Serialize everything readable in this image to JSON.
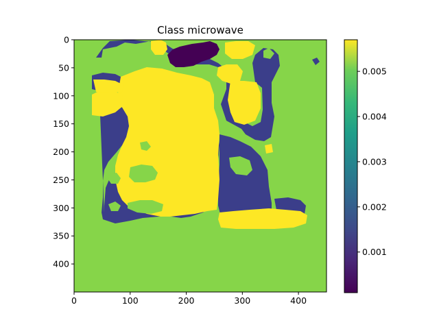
{
  "chart_data": {
    "type": "heatmap",
    "title": "Class microwave",
    "xlabel": "",
    "ylabel": "",
    "x_ticks": [
      "0",
      "100",
      "200",
      "300",
      "400"
    ],
    "y_ticks": [
      "0",
      "50",
      "100",
      "150",
      "200",
      "250",
      "300",
      "350",
      "400"
    ],
    "xlim": [
      0,
      450
    ],
    "ylim": [
      450,
      0
    ],
    "colorbar": {
      "range": [
        0.0001,
        0.0057
      ],
      "ticks": [
        "0.001",
        "0.002",
        "0.003",
        "0.004",
        "0.005"
      ],
      "colormap": "viridis"
    },
    "values_legend": {
      "background": 0.0046,
      "low": 0.0008,
      "very_low": 0.0002,
      "high": 0.0056
    }
  },
  "colors": {
    "green": "#86d549",
    "navy": "#3b3e8a",
    "yellow": "#fde725",
    "purple": "#440154"
  }
}
